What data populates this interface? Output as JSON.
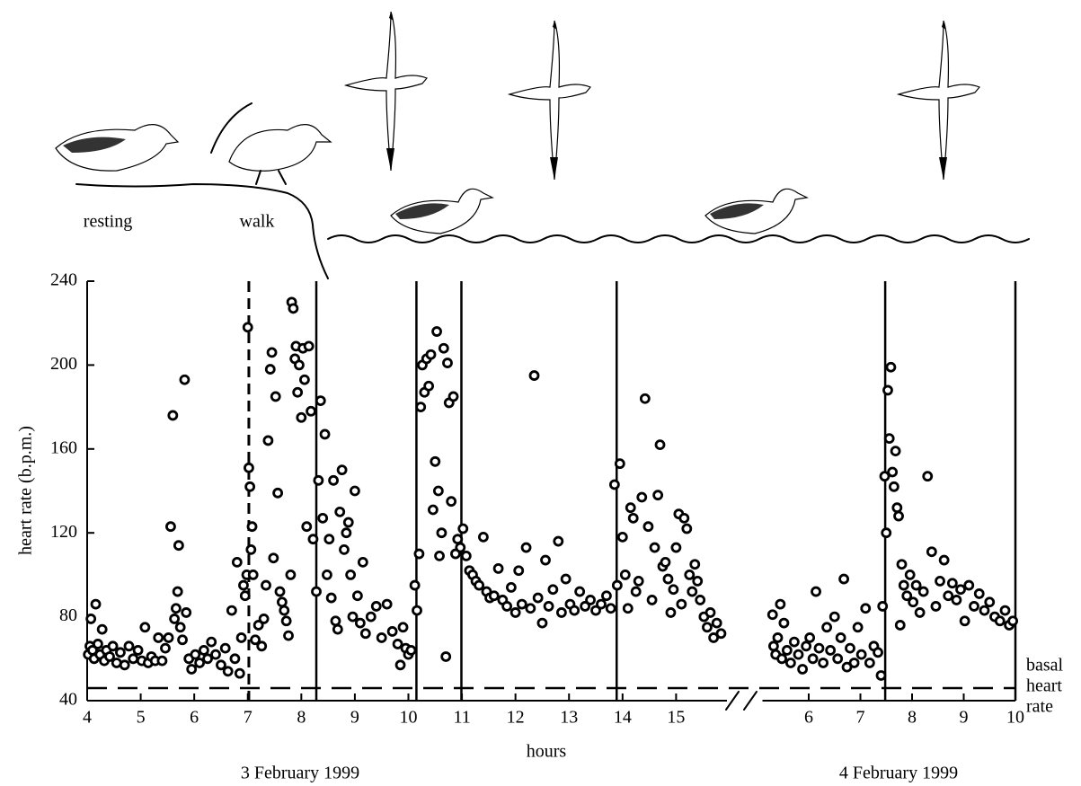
{
  "chart_data": [
    {
      "type": "scatter",
      "ylabel": "heart rate (b.p.m.)",
      "xlabel": "hours",
      "date": "3 February 1999",
      "color": "#000000",
      "xlim": [
        4,
        15.95
      ],
      "xticks": [
        4,
        5,
        6,
        7,
        8,
        9,
        10,
        11,
        12,
        13,
        14,
        15
      ],
      "ylim": [
        40,
        240
      ],
      "yticks": [
        40,
        80,
        120,
        160,
        200,
        240
      ],
      "phase_lines": [
        {
          "x": 7.02,
          "style": "dashed"
        },
        {
          "x": 8.28,
          "style": "solid"
        },
        {
          "x": 10.15,
          "style": "solid"
        },
        {
          "x": 10.99,
          "style": "solid"
        },
        {
          "x": 13.89,
          "style": "solid"
        }
      ],
      "reference_line": {
        "value": 46,
        "label": [
          "basal",
          "heart",
          "rate"
        ]
      },
      "illustration_labels": [
        "resting",
        "walk"
      ],
      "x": [
        4.02,
        4.05,
        4.07,
        4.1,
        4.13,
        4.16,
        4.2,
        4.24,
        4.28,
        4.32,
        4.36,
        4.42,
        4.48,
        4.55,
        4.62,
        4.7,
        4.78,
        4.86,
        4.95,
        5.02,
        5.08,
        5.14,
        5.2,
        5.27,
        5.33,
        5.4,
        5.46,
        5.52,
        5.56,
        5.6,
        5.63,
        5.66,
        5.69,
        5.71,
        5.74,
        5.78,
        5.82,
        5.85,
        5.9,
        5.95,
        6.02,
        6.1,
        6.18,
        6.25,
        6.32,
        6.4,
        6.5,
        6.58,
        6.63,
        6.7,
        6.76,
        6.8,
        6.85,
        6.88,
        6.92,
        6.95,
        6.98,
        7.0,
        7.02,
        7.04,
        7.06,
        7.08,
        7.1,
        7.14,
        7.2,
        7.26,
        7.3,
        7.34,
        7.38,
        7.42,
        7.45,
        7.48,
        7.52,
        7.56,
        7.6,
        7.64,
        7.68,
        7.72,
        7.76,
        7.8,
        7.82,
        7.85,
        7.88,
        7.9,
        7.93,
        7.96,
        8.0,
        8.03,
        8.06,
        8.1,
        8.14,
        8.18,
        8.22,
        8.28,
        8.32,
        8.36,
        8.4,
        8.44,
        8.48,
        8.52,
        8.56,
        8.6,
        8.64,
        8.68,
        8.72,
        8.76,
        8.8,
        8.84,
        8.88,
        8.92,
        8.96,
        9.0,
        9.05,
        9.1,
        9.15,
        9.2,
        9.3,
        9.4,
        9.5,
        9.6,
        9.7,
        9.8,
        9.85,
        9.9,
        9.95,
        10.0,
        10.05,
        10.12,
        10.16,
        10.2,
        10.23,
        10.26,
        10.3,
        10.34,
        10.38,
        10.42,
        10.46,
        10.5,
        10.53,
        10.56,
        10.58,
        10.62,
        10.66,
        10.7,
        10.73,
        10.76,
        10.8,
        10.84,
        10.88,
        10.92,
        10.97,
        11.02,
        11.08,
        11.14,
        11.2,
        11.26,
        11.32,
        11.4,
        11.46,
        11.52,
        11.6,
        11.68,
        11.76,
        11.84,
        11.92,
        12.0,
        12.06,
        12.12,
        12.2,
        12.28,
        12.35,
        12.42,
        12.5,
        12.56,
        12.62,
        12.7,
        12.8,
        12.86,
        12.94,
        13.02,
        13.1,
        13.2,
        13.3,
        13.4,
        13.5,
        13.6,
        13.7,
        13.78,
        13.85,
        13.9,
        13.95,
        14.0,
        14.05,
        14.1,
        14.15,
        14.2,
        14.25,
        14.3,
        14.36,
        14.42,
        14.48,
        14.55,
        14.6,
        14.66,
        14.7,
        14.75,
        14.8,
        14.85,
        14.9,
        14.95,
        15.0,
        15.05,
        15.1,
        15.15,
        15.2,
        15.25,
        15.3,
        15.35,
        15.4,
        15.45,
        15.52,
        15.58,
        15.64,
        15.7,
        15.76,
        15.84
      ],
      "values": [
        62,
        66,
        79,
        64,
        60,
        86,
        67,
        62,
        74,
        59,
        64,
        61,
        66,
        58,
        63,
        57,
        66,
        60,
        64,
        59,
        75,
        58,
        61,
        59,
        70,
        59,
        65,
        70,
        123,
        176,
        79,
        84,
        92,
        114,
        75,
        69,
        193,
        82,
        60,
        55,
        62,
        58,
        64,
        60,
        68,
        62,
        57,
        65,
        54,
        83,
        60,
        106,
        53,
        70,
        95,
        90,
        100,
        218,
        151,
        142,
        112,
        123,
        100,
        69,
        76,
        66,
        79,
        95,
        164,
        198,
        206,
        108,
        185,
        139,
        92,
        87,
        83,
        78,
        71,
        100,
        230,
        227,
        203,
        209,
        187,
        200,
        175,
        208,
        193,
        123,
        209,
        178,
        117,
        92,
        145,
        183,
        127,
        167,
        100,
        117,
        89,
        145,
        78,
        74,
        130,
        150,
        112,
        120,
        125,
        100,
        80,
        140,
        90,
        77,
        106,
        72,
        80,
        85,
        70,
        86,
        73,
        67,
        57,
        75,
        65,
        62,
        64,
        95,
        83,
        110,
        180,
        200,
        187,
        203,
        190,
        205,
        131,
        154,
        216,
        140,
        109,
        120,
        208,
        61,
        201,
        182,
        135,
        185,
        110,
        117,
        113,
        122,
        109,
        102,
        100,
        97,
        95,
        118,
        92,
        89,
        90,
        103,
        88,
        85,
        94,
        82,
        102,
        86,
        113,
        84,
        195,
        89,
        77,
        107,
        85,
        93,
        116,
        82,
        98,
        86,
        83,
        92,
        85,
        88,
        83,
        86,
        90,
        84,
        143,
        95,
        153,
        118,
        100,
        84,
        132,
        127,
        92,
        97,
        137,
        184,
        123,
        88,
        113,
        138,
        162,
        104,
        106,
        98,
        82,
        93,
        113,
        129,
        86,
        127,
        122,
        100,
        92,
        105,
        97,
        88,
        80,
        75,
        82,
        70,
        77,
        72
      ]
    },
    {
      "type": "scatter",
      "date": "4 February 1999",
      "color": "#000000",
      "xlim": [
        5,
        10
      ],
      "xticks": [
        6,
        7,
        8,
        9,
        10
      ],
      "ylim": [
        40,
        240
      ],
      "phase_lines": [
        {
          "x": 7.48,
          "style": "solid"
        },
        {
          "x": 10,
          "style": "solid"
        }
      ],
      "x": [
        5.3,
        5.32,
        5.36,
        5.4,
        5.45,
        5.48,
        5.52,
        5.58,
        5.65,
        5.72,
        5.8,
        5.88,
        5.95,
        6.02,
        6.08,
        6.14,
        6.2,
        6.28,
        6.35,
        6.42,
        6.5,
        6.56,
        6.62,
        6.68,
        6.74,
        6.8,
        6.88,
        6.95,
        7.02,
        7.1,
        7.18,
        7.26,
        7.34,
        7.4,
        7.43,
        7.47,
        7.5,
        7.53,
        7.56,
        7.59,
        7.62,
        7.65,
        7.68,
        7.71,
        7.74,
        7.77,
        7.8,
        7.84,
        7.9,
        7.96,
        8.02,
        8.08,
        8.15,
        8.22,
        8.3,
        8.38,
        8.46,
        8.54,
        8.62,
        8.7,
        8.78,
        8.86,
        8.94,
        9.02,
        9.1,
        9.2,
        9.3,
        9.4,
        9.5,
        9.6,
        9.7,
        9.8,
        9.88,
        9.95
      ],
      "values": [
        81,
        66,
        62,
        70,
        86,
        60,
        77,
        64,
        58,
        68,
        62,
        55,
        66,
        70,
        60,
        92,
        65,
        58,
        75,
        64,
        80,
        60,
        70,
        98,
        56,
        65,
        58,
        75,
        62,
        84,
        58,
        66,
        63,
        52,
        85,
        147,
        120,
        188,
        165,
        199,
        149,
        142,
        159,
        132,
        128,
        76,
        105,
        95,
        90,
        100,
        87,
        95,
        82,
        92,
        147,
        111,
        85,
        97,
        107,
        90,
        96,
        88,
        93,
        78,
        95,
        85,
        91,
        83,
        87,
        80,
        78,
        83,
        76,
        78
      ]
    }
  ]
}
